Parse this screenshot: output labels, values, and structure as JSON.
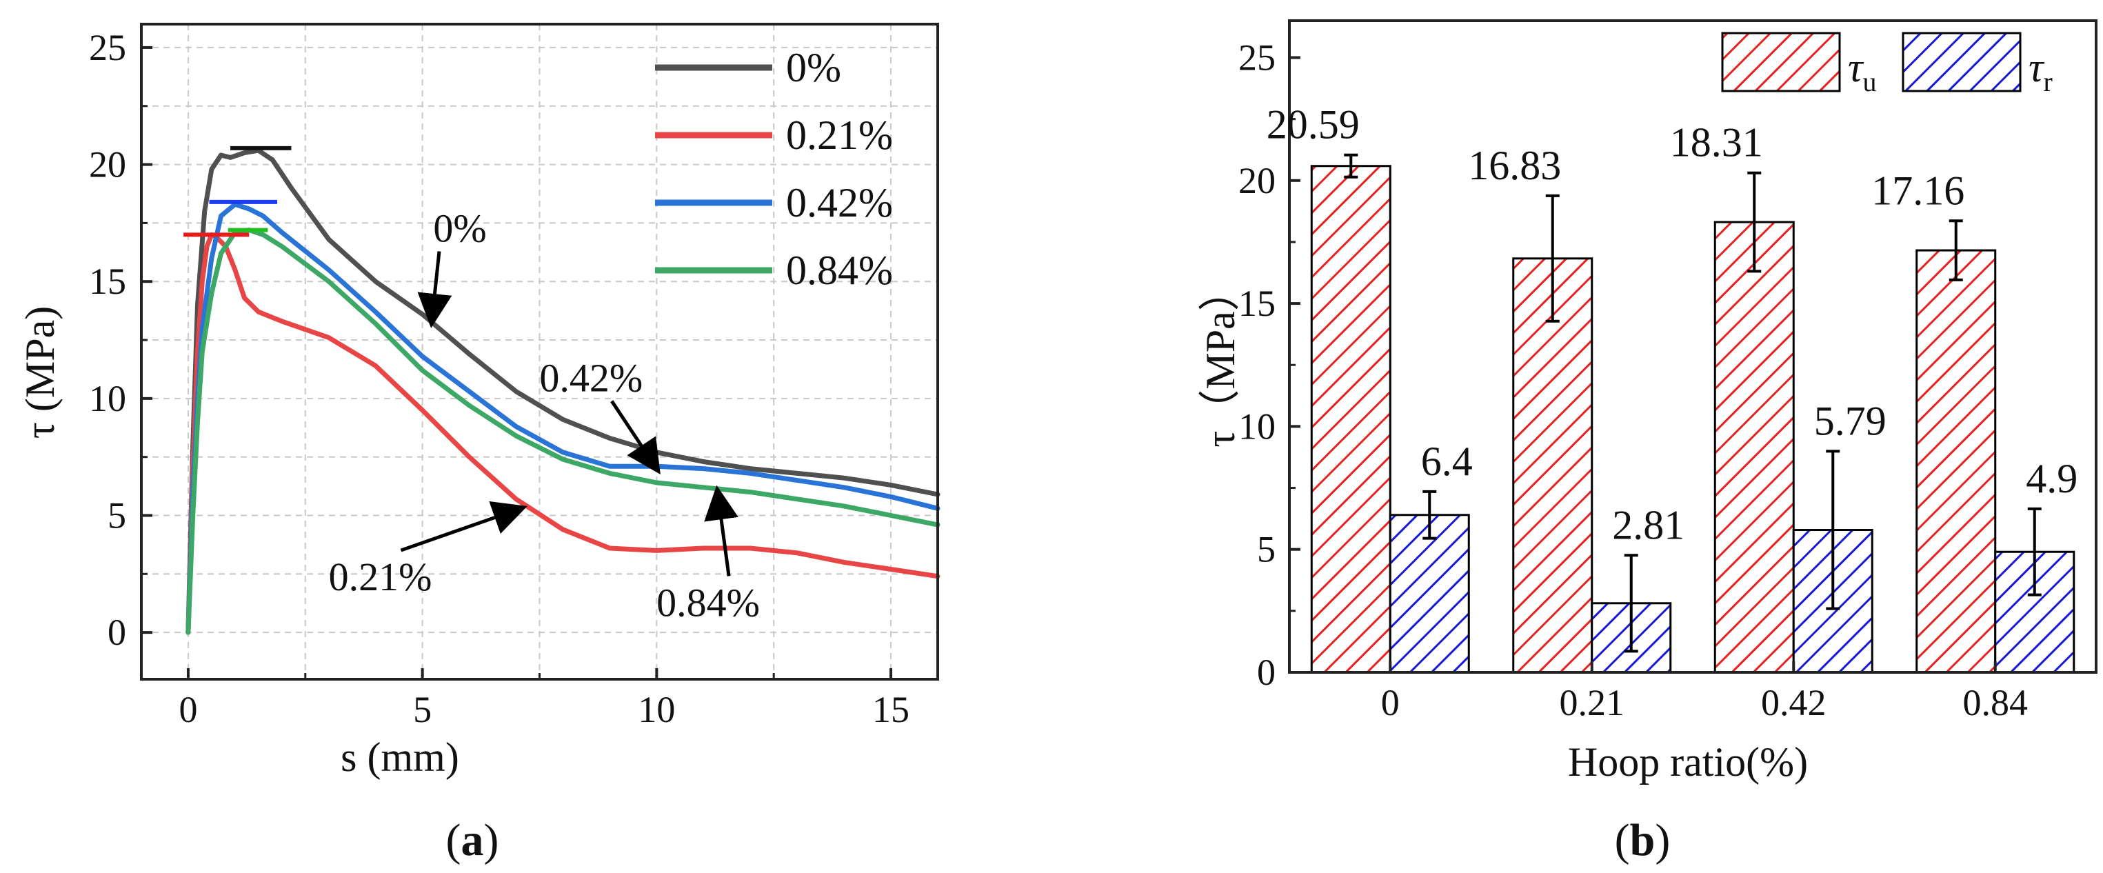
{
  "charts": [
    {
      "panel": "a",
      "chart_data": {
        "type": "line",
        "xlabel": "s (mm)",
        "ylabel": "τ (MPa)",
        "xlim": [
          -1,
          16
        ],
        "ylim": [
          -2,
          26
        ],
        "xticks": [
          0,
          5,
          10,
          15
        ],
        "yticks": [
          0,
          5,
          10,
          15,
          20,
          25
        ],
        "grid": true,
        "legend_position": "top-right",
        "series": [
          {
            "name": "0%",
            "color": "#505050",
            "x": [
              0,
              0.1,
              0.2,
              0.35,
              0.5,
              0.7,
              0.9,
              1.2,
              1.5,
              1.8,
              2.2,
              3,
              4,
              5,
              6,
              7,
              8,
              9,
              10,
              11,
              12,
              13,
              14,
              15,
              16
            ],
            "y": [
              0,
              8,
              14,
              18,
              19.8,
              20.4,
              20.3,
              20.5,
              20.6,
              20.2,
              19,
              16.8,
              15,
              13.6,
              11.9,
              10.3,
              9.1,
              8.3,
              7.7,
              7.3,
              7.0,
              6.8,
              6.6,
              6.3,
              5.9
            ]
          },
          {
            "name": "0.21%",
            "color": "#e84646",
            "x": [
              0,
              0.1,
              0.2,
              0.3,
              0.4,
              0.5,
              0.6,
              0.8,
              1.0,
              1.2,
              1.5,
              2,
              3,
              4,
              5,
              6,
              7,
              8,
              9,
              10,
              11,
              12,
              13,
              14,
              15,
              16
            ],
            "y": [
              0,
              7,
              12,
              15,
              16.5,
              17,
              16.9,
              16.5,
              15.5,
              14.3,
              13.7,
              13.3,
              12.6,
              11.4,
              9.5,
              7.5,
              5.7,
              4.4,
              3.6,
              3.5,
              3.6,
              3.6,
              3.4,
              3.0,
              2.7,
              2.4
            ]
          },
          {
            "name": "0.42%",
            "color": "#2a74d8",
            "x": [
              0,
              0.1,
              0.2,
              0.3,
              0.5,
              0.7,
              1.0,
              1.3,
              1.6,
              2,
              3,
              4,
              5,
              6,
              7,
              8,
              9,
              10,
              11,
              12,
              13,
              14,
              15,
              16
            ],
            "y": [
              0,
              6,
              10,
              13,
              16,
              17.8,
              18.3,
              18.1,
              17.8,
              17.1,
              15.5,
              13.7,
              11.8,
              10.3,
              8.8,
              7.7,
              7.1,
              7.1,
              7.0,
              6.8,
              6.5,
              6.2,
              5.8,
              5.3
            ]
          },
          {
            "name": "0.84%",
            "color": "#3da865",
            "x": [
              0,
              0.1,
              0.2,
              0.3,
              0.5,
              0.7,
              1.0,
              1.3,
              1.6,
              2,
              3,
              4,
              5,
              6,
              7,
              8,
              9,
              10,
              11,
              12,
              13,
              14,
              15,
              16
            ],
            "y": [
              0,
              5,
              9,
              12,
              14.5,
              16.2,
              17.1,
              17.2,
              17.0,
              16.5,
              15,
              13.2,
              11.2,
              9.7,
              8.4,
              7.4,
              6.8,
              6.4,
              6.2,
              6.0,
              5.7,
              5.4,
              5.0,
              4.6
            ]
          }
        ],
        "peak_markers": [
          {
            "series": "0%",
            "color": "#111111",
            "y": 20.7,
            "x_from": 0.9,
            "x_to": 2.2
          },
          {
            "series": "0.42%",
            "color": "#1c3cf0",
            "y": 18.4,
            "x_from": 0.45,
            "x_to": 1.9
          },
          {
            "series": "0.21%",
            "color": "#e81c1c",
            "y": 17.0,
            "x_from": -0.1,
            "x_to": 1.3
          },
          {
            "series": "0.84%",
            "color": "#20c020",
            "y": 17.2,
            "x_from": 0.85,
            "x_to": 1.7
          }
        ],
        "annotations": [
          {
            "text": "0%",
            "x": 5.8,
            "y": 16.7,
            "arrow_to": [
              5.2,
              13.3
            ]
          },
          {
            "text": "0.42%",
            "x": 8.6,
            "y": 10.3,
            "arrow_to": [
              10.0,
              7.0
            ]
          },
          {
            "text": "0.21%",
            "x": 4.1,
            "y": 1.8,
            "arrow_to": [
              7.1,
              5.3
            ]
          },
          {
            "text": "0.84%",
            "x": 11.1,
            "y": 0.7,
            "arrow_to": [
              11.3,
              6.0
            ]
          }
        ]
      }
    },
    {
      "panel": "b",
      "chart_data": {
        "type": "bar",
        "xlabel": "Hoop ratio(%)",
        "ylabel": "τ（MPa）",
        "categories": [
          "0",
          "0.21",
          "0.42",
          "0.84"
        ],
        "ylim": [
          0,
          26.5
        ],
        "yticks": [
          0,
          5,
          10,
          15,
          20,
          25
        ],
        "legend_position": "top-right",
        "series": [
          {
            "name": "τ",
            "subscript": "u",
            "color": "#e82020",
            "values": [
              20.59,
              16.83,
              18.31,
              17.16
            ],
            "errors": [
              0.45,
              2.55,
              2.0,
              1.2
            ],
            "labels": [
              "20.59",
              "16.83",
              "18.31",
              "17.16"
            ]
          },
          {
            "name": "τ",
            "subscript": "r",
            "color": "#1818d8",
            "values": [
              6.4,
              2.81,
              5.79,
              4.9
            ],
            "errors": [
              0.95,
              1.95,
              3.2,
              1.75
            ],
            "labels": [
              "6.4",
              "2.81",
              "5.79",
              "4.9"
            ]
          }
        ]
      }
    }
  ],
  "panel_labels": {
    "a": "a",
    "b": "b",
    "open": "(",
    "close": ")"
  }
}
